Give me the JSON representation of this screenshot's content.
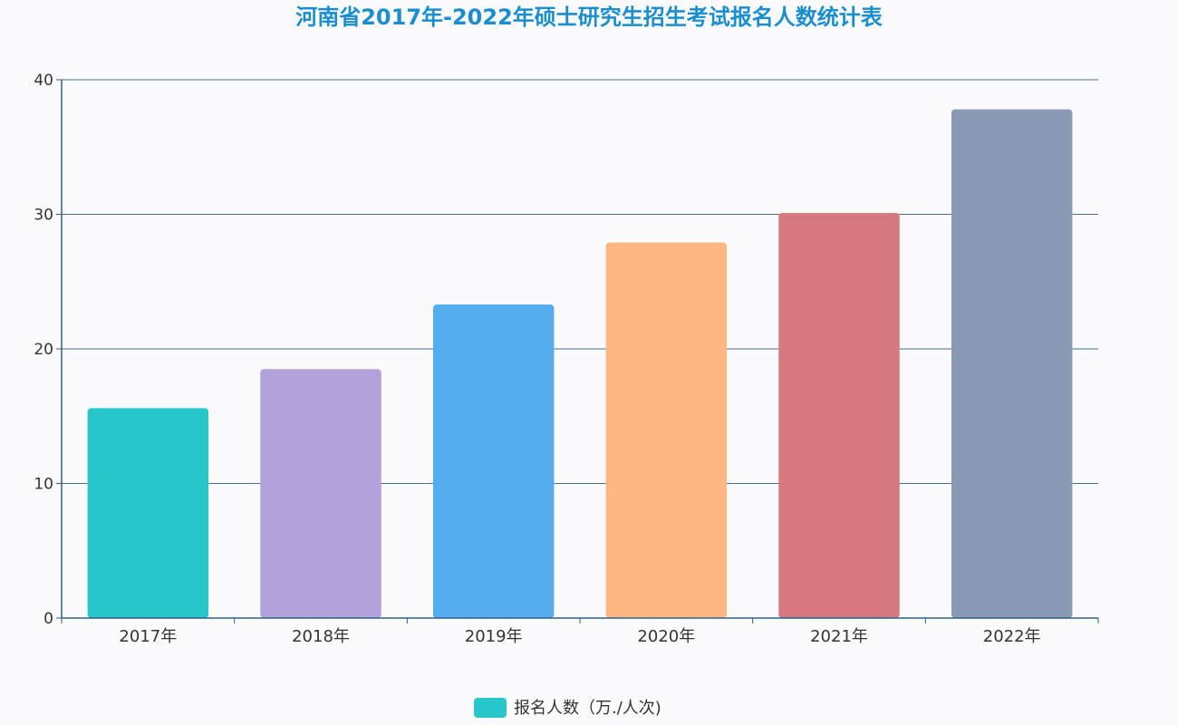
{
  "colors": {
    "title": "#1a8ecf",
    "axis": "#2f5f8a",
    "grid": "#4a6f8f",
    "bars": [
      "#27c6cb",
      "#b3a1db",
      "#55adee",
      "#feb783",
      "#d6787d",
      "#8a99b4"
    ],
    "legend": "#27c6cb"
  },
  "chart_data": {
    "type": "bar",
    "title": "河南省2017年-2022年硕士研究生招生考试报名人数统计表",
    "xlabel": "",
    "ylabel": "",
    "categories": [
      "2017年",
      "2018年",
      "2019年",
      "2020年",
      "2021年",
      "2022年"
    ],
    "series": [
      {
        "name": "报名人数（万./人次)",
        "values": [
          15.6,
          18.5,
          23.3,
          27.9,
          30.1,
          37.8
        ]
      }
    ],
    "ylim": [
      0,
      40
    ],
    "yticks": [
      0,
      10,
      20,
      30,
      40
    ],
    "grid": true,
    "legend": "bottom-center"
  }
}
